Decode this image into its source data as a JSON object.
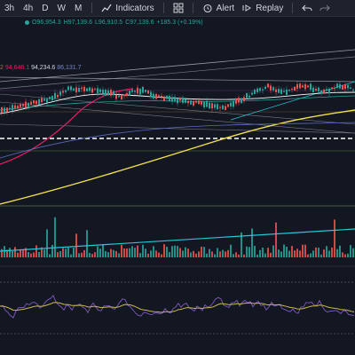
{
  "toolbar": {
    "timeframes": [
      "3h",
      "4h",
      "D",
      "W",
      "M"
    ],
    "indicators_label": "Indicators",
    "alert_label": "Alert",
    "replay_label": "Replay"
  },
  "ohlc": {
    "open": "O96,954.3",
    "high": "H97,139.6",
    "low": "L96,910.5",
    "close": "C97,139.6",
    "change": "+185.3 (+0.19%)"
  },
  "indicator_values": {
    "v1": "2",
    "v2": "94,648.1",
    "v3": "94,234.6",
    "v4": "86,131.7"
  },
  "colors": {
    "background": "#131722",
    "up": "#26a69a",
    "down": "#ef5350",
    "ma_yellow": "#f5e04d",
    "ma_pink": "#e91e63",
    "trend_cyan": "#26c6da",
    "rsi_purple": "#7e57c2",
    "rsi_yellow": "#c9b94a"
  }
}
